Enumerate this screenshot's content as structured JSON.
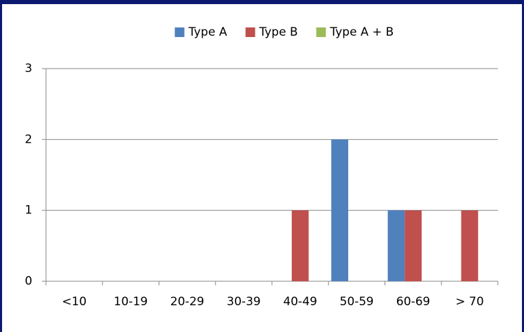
{
  "chart_data": {
    "type": "bar",
    "categories": [
      "<10",
      "10-19",
      "20-29",
      "30-39",
      "40-49",
      "50-59",
      "60-69",
      "> 70"
    ],
    "series": [
      {
        "name": "Type A",
        "color": "#4f81bd",
        "values": [
          0,
          0,
          0,
          0,
          0,
          2,
          1,
          0
        ]
      },
      {
        "name": "Type B",
        "color": "#c0504d",
        "values": [
          0,
          0,
          0,
          0,
          1,
          0,
          1,
          1
        ]
      },
      {
        "name": "Type A + B",
        "color": "#9bbb59",
        "values": [
          0,
          0,
          0,
          0,
          0,
          0,
          0,
          0
        ]
      }
    ],
    "ylim": [
      0,
      3
    ],
    "yticks": [
      0,
      1,
      2,
      3
    ],
    "grid": true,
    "legend": "top"
  }
}
